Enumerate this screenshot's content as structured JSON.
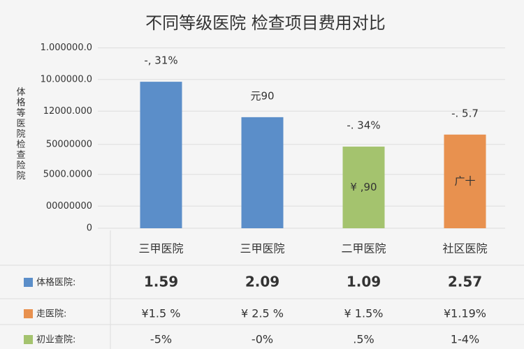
{
  "chart_data": {
    "type": "bar",
    "title": "不同等级医院 检查项目费用对比",
    "ylabel": "体格等医院检查险院",
    "categories": [
      "三甲医院",
      "三甲医院",
      "二甲医院",
      "社区医院"
    ],
    "values": [
      4.63,
      3.51,
      2.58,
      2.96
    ],
    "colors": [
      "#5b8ec9",
      "#5b8ec9",
      "#a4c36e",
      "#e8914f"
    ],
    "bar_labels": [
      "-, 31%",
      "元90",
      "-. 34%",
      "-. 5.7"
    ],
    "inner_labels": [
      null,
      null,
      "¥ ,90",
      "广十"
    ],
    "ylim": [
      0,
      6
    ],
    "yticks": [
      0,
      {
        "value": 0.7,
        "label": "00000000"
      },
      {
        "value": 1.7,
        "label": "5000.0000"
      },
      {
        "value": 2.65,
        "label": "50000000"
      },
      {
        "value": 3.7,
        "label": "12000.000"
      },
      {
        "value": 4.7,
        "label": "10.00000.0"
      },
      {
        "value": 5.7,
        "label": "1.000000.0"
      }
    ],
    "grid": true
  },
  "table": {
    "rows": [
      {
        "name": "体格医院:",
        "color": "#5b8ec9",
        "cells": [
          "1.59",
          "2.09",
          "1.09",
          "2.57"
        ]
      },
      {
        "name": "走医院:",
        "color": "#e8914f",
        "cells": [
          "¥1.5 %",
          "¥ 2.5 %",
          "¥ 1.5%",
          "¥1.19%"
        ]
      },
      {
        "name": "初业查院:",
        "color": "#a4c36e",
        "cells": [
          "-5%",
          "-0%",
          ".5%",
          "1-4%"
        ]
      }
    ]
  }
}
